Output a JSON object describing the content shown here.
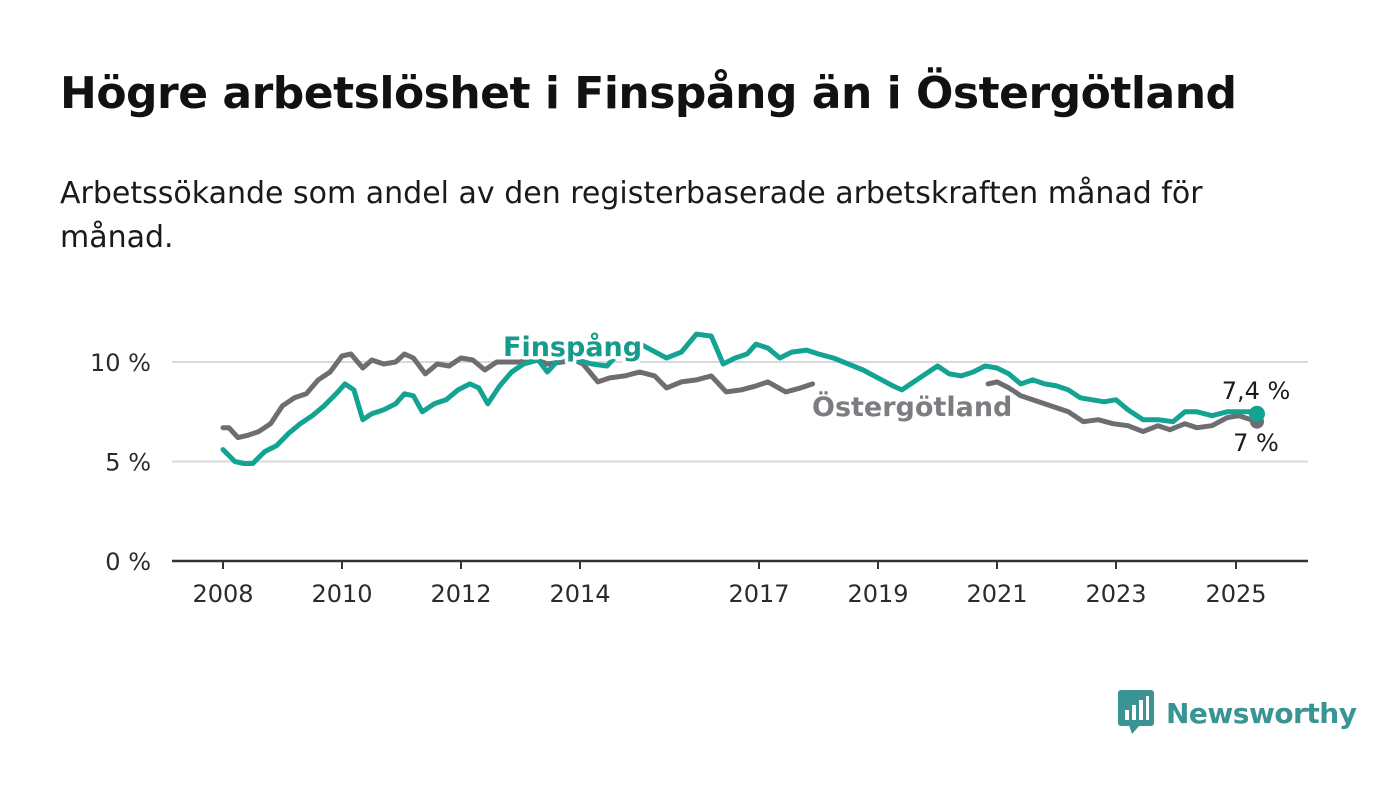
{
  "header": {
    "title": "Högre arbetslöshet i Finspång än i Östergötland",
    "subtitle": "Arbetssökande som andel av den registerbaserade arbetskraften månad för månad."
  },
  "brand": {
    "name": "Newsworthy",
    "logo_icon": "bar-chart-speech-bubble-icon",
    "color": "#3a9494"
  },
  "chart_data": {
    "type": "line",
    "title": "Högre arbetslöshet i Finspång än i Östergötland",
    "subtitle": "Arbetssökande som andel av den registerbaserade arbetskraften månad för månad.",
    "xlabel": "",
    "ylabel": "",
    "x_unit": "year",
    "xlim": [
      2007.6,
      2026.4
    ],
    "ylim": [
      0,
      10.5
    ],
    "x_ticks": [
      2008,
      2010,
      2012,
      2014,
      2017,
      2019,
      2021,
      2023,
      2025
    ],
    "x_tick_labels": [
      "2008",
      "2010",
      "2012",
      "2014",
      "2017",
      "2019",
      "2021",
      "2023",
      "2025"
    ],
    "y_ticks": [
      0,
      5,
      10
    ],
    "y_tick_labels": [
      "0 %",
      "5 %",
      "10 %"
    ],
    "grid": "horizontal",
    "legend": "none",
    "series": [
      {
        "name": "Östergötland",
        "color": "#6e6d72",
        "label_color": "#7d7c80",
        "end_label": "7 %",
        "points": [
          [
            2008.0,
            6.7
          ],
          [
            2008.1,
            6.7
          ],
          [
            2008.25,
            6.2
          ],
          [
            2008.4,
            6.3
          ],
          [
            2008.6,
            6.5
          ],
          [
            2008.8,
            6.9
          ],
          [
            2009.0,
            7.8
          ],
          [
            2009.2,
            8.2
          ],
          [
            2009.4,
            8.4
          ],
          [
            2009.6,
            9.1
          ],
          [
            2009.8,
            9.5
          ],
          [
            2010.0,
            10.3
          ],
          [
            2010.15,
            10.4
          ],
          [
            2010.35,
            9.7
          ],
          [
            2010.5,
            10.1
          ],
          [
            2010.7,
            9.9
          ],
          [
            2010.9,
            10.0
          ],
          [
            2011.05,
            10.4
          ],
          [
            2011.2,
            10.2
          ],
          [
            2011.4,
            9.4
          ],
          [
            2011.6,
            9.9
          ],
          [
            2011.8,
            9.8
          ],
          [
            2012.0,
            10.2
          ],
          [
            2012.2,
            10.1
          ],
          [
            2012.4,
            9.6
          ],
          [
            2012.6,
            10.0
          ],
          [
            2012.8,
            10.0
          ],
          [
            2013.0,
            10.0
          ],
          [
            2013.2,
            10.2
          ],
          [
            2013.45,
            9.9
          ],
          [
            2013.7,
            10.0
          ],
          [
            2013.9,
            10.1
          ],
          [
            2014.05,
            9.9
          ],
          [
            2014.3,
            9.0
          ],
          [
            2014.5,
            9.2
          ],
          [
            2014.75,
            9.3
          ],
          [
            2015.0,
            9.5
          ],
          [
            2015.25,
            9.3
          ],
          [
            2015.45,
            8.7
          ],
          [
            2015.7,
            9.0
          ],
          [
            2015.95,
            9.1
          ],
          [
            2016.2,
            9.3
          ],
          [
            2016.45,
            8.5
          ],
          [
            2016.7,
            8.6
          ],
          [
            2016.95,
            8.8
          ],
          [
            2017.15,
            9.0
          ],
          [
            2017.45,
            8.5
          ],
          [
            2017.7,
            8.7
          ],
          [
            2017.9,
            8.9
          ]
        ],
        "points_segment_2": [
          [
            2020.85,
            8.9
          ],
          [
            2021.0,
            9.0
          ],
          [
            2021.2,
            8.7
          ],
          [
            2021.4,
            8.3
          ],
          [
            2021.6,
            8.1
          ],
          [
            2021.8,
            7.9
          ],
          [
            2022.0,
            7.7
          ],
          [
            2022.2,
            7.5
          ],
          [
            2022.45,
            7.0
          ],
          [
            2022.7,
            7.1
          ],
          [
            2022.95,
            6.9
          ],
          [
            2023.2,
            6.8
          ],
          [
            2023.45,
            6.5
          ],
          [
            2023.7,
            6.8
          ],
          [
            2023.9,
            6.6
          ],
          [
            2024.15,
            6.9
          ],
          [
            2024.35,
            6.7
          ],
          [
            2024.6,
            6.8
          ],
          [
            2024.85,
            7.2
          ],
          [
            2025.05,
            7.3
          ],
          [
            2025.25,
            7.1
          ],
          [
            2025.35,
            7.0
          ]
        ]
      },
      {
        "name": "Finspång",
        "color": "#12a393",
        "label_color": "#159a8c",
        "end_label": "7,4 %",
        "points": [
          [
            2008.0,
            5.6
          ],
          [
            2008.1,
            5.3
          ],
          [
            2008.2,
            5.0
          ],
          [
            2008.35,
            4.9
          ],
          [
            2008.5,
            4.9
          ],
          [
            2008.7,
            5.5
          ],
          [
            2008.9,
            5.8
          ],
          [
            2009.1,
            6.4
          ],
          [
            2009.3,
            6.9
          ],
          [
            2009.5,
            7.3
          ],
          [
            2009.7,
            7.8
          ],
          [
            2009.9,
            8.4
          ],
          [
            2010.05,
            8.9
          ],
          [
            2010.2,
            8.6
          ],
          [
            2010.35,
            7.1
          ],
          [
            2010.5,
            7.4
          ],
          [
            2010.7,
            7.6
          ],
          [
            2010.9,
            7.9
          ],
          [
            2011.05,
            8.4
          ],
          [
            2011.2,
            8.3
          ],
          [
            2011.35,
            7.5
          ],
          [
            2011.55,
            7.9
          ],
          [
            2011.75,
            8.1
          ],
          [
            2011.95,
            8.6
          ],
          [
            2012.15,
            8.9
          ],
          [
            2012.3,
            8.7
          ],
          [
            2012.45,
            7.9
          ],
          [
            2012.65,
            8.8
          ],
          [
            2012.85,
            9.5
          ],
          [
            2013.05,
            9.9
          ],
          [
            2013.3,
            10.1
          ],
          [
            2013.45,
            9.5
          ],
          [
            2013.7,
            10.3
          ],
          [
            2013.95,
            10.1
          ],
          [
            2014.2,
            9.9
          ],
          [
            2014.45,
            9.8
          ],
          [
            2014.7,
            10.6
          ],
          [
            2014.95,
            11.0
          ],
          [
            2015.2,
            10.6
          ],
          [
            2015.45,
            10.2
          ],
          [
            2015.7,
            10.5
          ],
          [
            2015.95,
            11.4
          ],
          [
            2016.2,
            11.3
          ],
          [
            2016.4,
            9.9
          ],
          [
            2016.6,
            10.2
          ],
          [
            2016.8,
            10.4
          ],
          [
            2016.95,
            10.9
          ],
          [
            2017.15,
            10.7
          ],
          [
            2017.35,
            10.2
          ],
          [
            2017.55,
            10.5
          ],
          [
            2017.8,
            10.6
          ],
          [
            2018.0,
            10.4
          ],
          [
            2018.25,
            10.2
          ],
          [
            2018.5,
            9.9
          ],
          [
            2018.75,
            9.6
          ],
          [
            2019.0,
            9.2
          ],
          [
            2019.25,
            8.8
          ],
          [
            2019.4,
            8.6
          ],
          [
            2019.6,
            9.0
          ],
          [
            2019.8,
            9.4
          ],
          [
            2020.0,
            9.8
          ],
          [
            2020.2,
            9.4
          ],
          [
            2020.4,
            9.3
          ],
          [
            2020.6,
            9.5
          ],
          [
            2020.8,
            9.8
          ],
          [
            2021.0,
            9.7
          ],
          [
            2021.2,
            9.4
          ],
          [
            2021.4,
            8.9
          ],
          [
            2021.6,
            9.1
          ],
          [
            2021.8,
            8.9
          ],
          [
            2022.0,
            8.8
          ],
          [
            2022.2,
            8.6
          ],
          [
            2022.4,
            8.2
          ],
          [
            2022.6,
            8.1
          ],
          [
            2022.8,
            8.0
          ],
          [
            2023.0,
            8.1
          ],
          [
            2023.2,
            7.6
          ],
          [
            2023.45,
            7.1
          ],
          [
            2023.7,
            7.1
          ],
          [
            2023.95,
            7.0
          ],
          [
            2024.15,
            7.5
          ],
          [
            2024.35,
            7.5
          ],
          [
            2024.6,
            7.3
          ],
          [
            2024.85,
            7.5
          ],
          [
            2025.05,
            7.5
          ],
          [
            2025.25,
            7.5
          ],
          [
            2025.35,
            7.4
          ]
        ]
      }
    ]
  }
}
